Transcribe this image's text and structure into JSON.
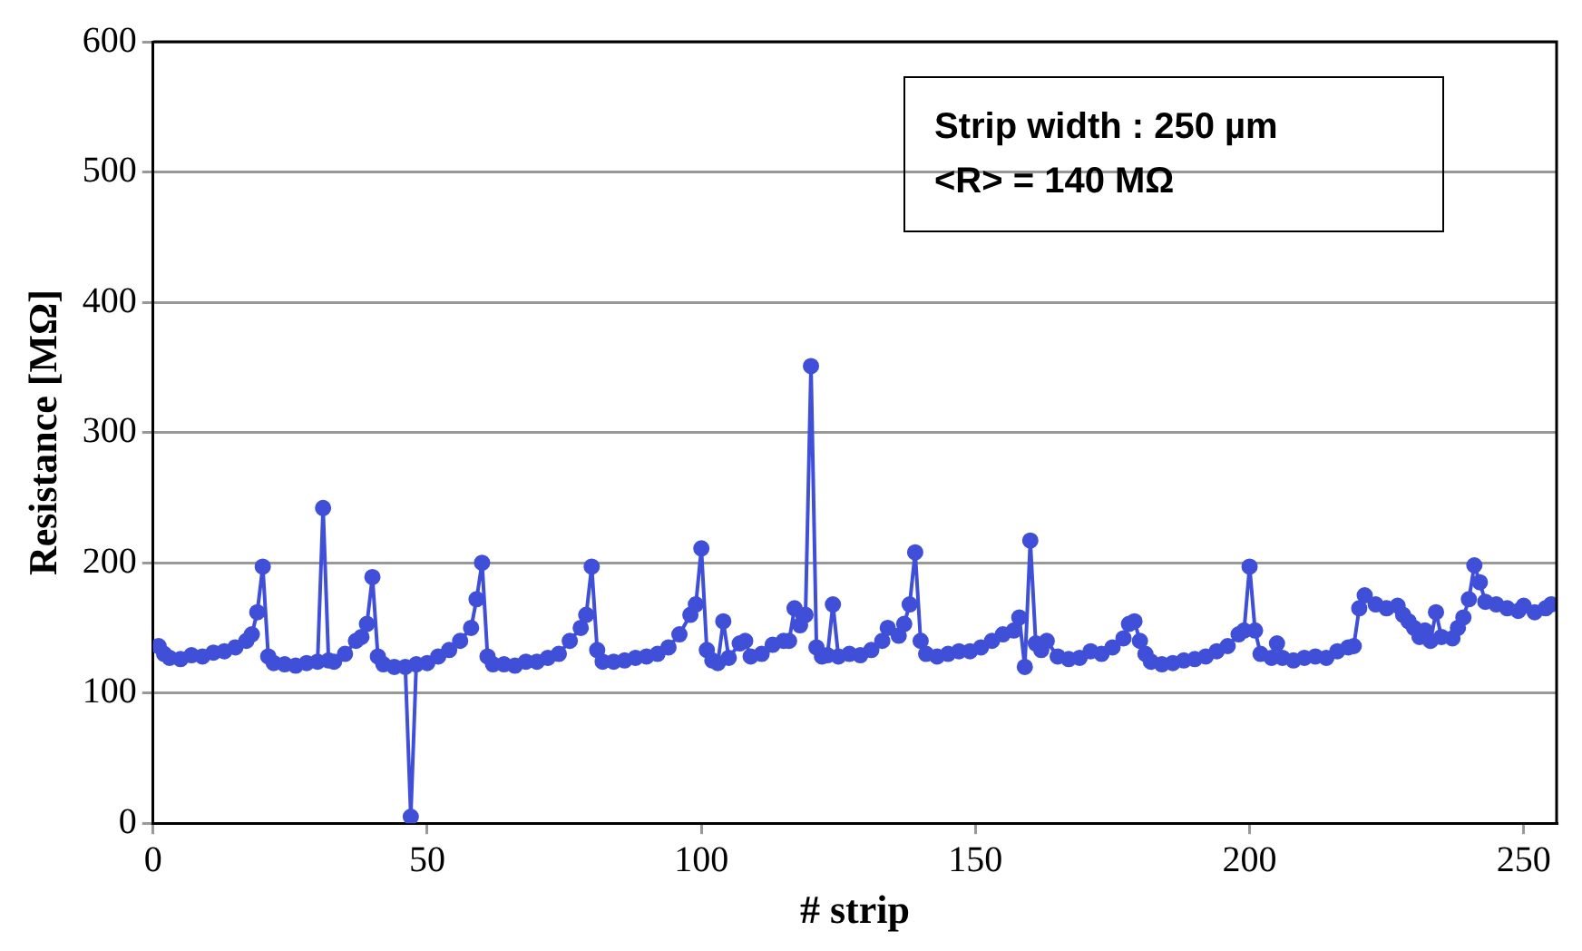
{
  "chart_data": {
    "type": "line",
    "xlabel": "# strip",
    "ylabel": "Resistance [MΩ]",
    "annotations": [
      "Strip width : 250 µm",
      "<R> = 140 MΩ"
    ],
    "xlim": [
      0,
      256
    ],
    "xticks": [
      0,
      50,
      100,
      150,
      200,
      250
    ],
    "ylim": [
      0,
      600
    ],
    "yticks": [
      0,
      100,
      200,
      300,
      400,
      500,
      600
    ],
    "grid": "y",
    "legend": false,
    "marker": "circle",
    "line_style": "solid",
    "series": [
      {
        "color": "#3f4fd8",
        "x": [
          1,
          2,
          3,
          5,
          7,
          9,
          11,
          13,
          15,
          17,
          18,
          19,
          20,
          21,
          22,
          24,
          26,
          28,
          30,
          31,
          32,
          33,
          35,
          37,
          38,
          39,
          40,
          41,
          42,
          44,
          46,
          47,
          48,
          50,
          52,
          54,
          56,
          58,
          59,
          60,
          61,
          62,
          64,
          66,
          68,
          70,
          72,
          74,
          76,
          78,
          79,
          80,
          81,
          82,
          84,
          86,
          88,
          90,
          92,
          94,
          96,
          98,
          99,
          100,
          101,
          102,
          103,
          104,
          105,
          107,
          108,
          109,
          111,
          113,
          115,
          116,
          117,
          118,
          119,
          120,
          121,
          122,
          123,
          124,
          125,
          127,
          129,
          131,
          133,
          134,
          136,
          137,
          138,
          139,
          140,
          141,
          143,
          145,
          147,
          149,
          151,
          153,
          155,
          157,
          158,
          159,
          160,
          161,
          162,
          163,
          165,
          167,
          169,
          171,
          173,
          175,
          177,
          178,
          179,
          180,
          181,
          182,
          184,
          186,
          188,
          190,
          192,
          194,
          196,
          198,
          199,
          200,
          201,
          202,
          204,
          205,
          206,
          208,
          210,
          212,
          214,
          216,
          218,
          219,
          220,
          221,
          223,
          225,
          227,
          228,
          229,
          230,
          231,
          232,
          233,
          234,
          235,
          237,
          238,
          239,
          240,
          241,
          242,
          243,
          245,
          247,
          249,
          250,
          252,
          254,
          255
        ],
        "values": [
          136,
          130,
          127,
          126,
          129,
          128,
          131,
          132,
          135,
          140,
          145,
          162,
          197,
          128,
          123,
          122,
          121,
          123,
          124,
          242,
          125,
          124,
          130,
          140,
          143,
          153,
          189,
          128,
          122,
          120,
          120,
          5,
          122,
          123,
          128,
          133,
          140,
          150,
          172,
          200,
          128,
          122,
          122,
          121,
          124,
          124,
          127,
          130,
          140,
          150,
          160,
          197,
          133,
          124,
          124,
          125,
          127,
          128,
          130,
          135,
          145,
          160,
          168,
          211,
          133,
          125,
          123,
          155,
          127,
          138,
          140,
          128,
          130,
          137,
          140,
          140,
          165,
          152,
          160,
          351,
          135,
          128,
          129,
          168,
          128,
          130,
          129,
          133,
          140,
          150,
          144,
          153,
          168,
          208,
          140,
          130,
          128,
          130,
          132,
          132,
          135,
          140,
          145,
          148,
          158,
          120,
          217,
          138,
          133,
          140,
          128,
          126,
          127,
          132,
          130,
          135,
          142,
          153,
          155,
          140,
          130,
          124,
          122,
          123,
          125,
          126,
          128,
          132,
          136,
          145,
          148,
          197,
          148,
          130,
          127,
          138,
          127,
          125,
          127,
          128,
          127,
          132,
          135,
          136,
          165,
          175,
          168,
          165,
          167,
          160,
          155,
          150,
          143,
          148,
          140,
          162,
          143,
          142,
          150,
          158,
          172,
          198,
          185,
          170,
          168,
          165,
          163,
          167,
          162,
          165,
          168
        ]
      }
    ]
  }
}
